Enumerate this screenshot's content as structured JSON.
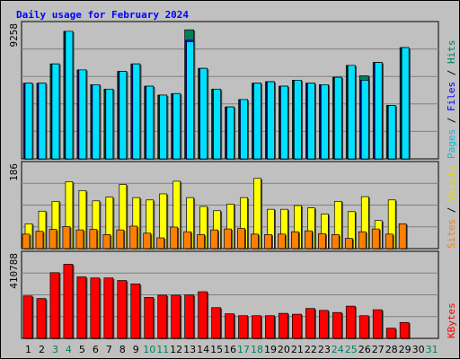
{
  "chart_data": {
    "type": "bar",
    "title": "Daily usage for February 2024",
    "x": [
      "1",
      "2",
      "3",
      "4",
      "5",
      "6",
      "7",
      "8",
      "9",
      "10",
      "11",
      "12",
      "13",
      "14",
      "15",
      "16",
      "17",
      "18",
      "19",
      "20",
      "21",
      "22",
      "23",
      "24",
      "25",
      "26",
      "27",
      "28",
      "29",
      "30",
      "31"
    ],
    "weekend_days": [
      "3",
      "4",
      "10",
      "11",
      "17",
      "18",
      "24",
      "25",
      "31"
    ],
    "panels": [
      {
        "name": "pages-files-hits",
        "max_label": "9258",
        "ylim": [
          0,
          9258
        ],
        "right_labels": [
          "Pages",
          "Files",
          "Hits"
        ],
        "series": [
          {
            "name": "Hits",
            "color": "#00805c",
            "values": [
              5100,
              5100,
              6400,
              8600,
              6000,
              5000,
              4700,
              5900,
              6400,
              4900,
              4300,
              4400,
              8700,
              6100,
              4700,
              3500,
              4000,
              5100,
              5200,
              4900,
              5300,
              5100,
              5000,
              5500,
              6300,
              5600,
              6500,
              3600,
              7500,
              0,
              0
            ]
          },
          {
            "name": "Files",
            "color": "#0000ff",
            "values": [
              5100,
              5100,
              6400,
              8600,
              6000,
              5000,
              4700,
              5900,
              6400,
              4900,
              4300,
              4400,
              8000,
              6100,
              4700,
              3500,
              4000,
              5100,
              5200,
              4900,
              5300,
              5100,
              5000,
              5500,
              6300,
              5300,
              6500,
              3600,
              7500,
              0,
              0
            ]
          },
          {
            "name": "Pages",
            "color": "#00e0ff",
            "values": [
              5100,
              5100,
              6400,
              8600,
              6000,
              5000,
              4700,
              5900,
              6400,
              4900,
              4300,
              4400,
              7900,
              6100,
              4700,
              3500,
              4000,
              5100,
              5200,
              4900,
              5300,
              5100,
              5000,
              5500,
              6300,
              5300,
              6500,
              3600,
              7500,
              0,
              0
            ]
          }
        ]
      },
      {
        "name": "visits-sites",
        "max_label": "186",
        "ylim": [
          0,
          186
        ],
        "right_labels": [
          "Sites",
          "Visits"
        ],
        "series": [
          {
            "name": "Visits",
            "color": "#ffff00",
            "values": [
              53,
              80,
              101,
              143,
              124,
              102,
              110,
              137,
              109,
              104,
              117,
              144,
              109,
              90,
              81,
              95,
              109,
              150,
              84,
              84,
              92,
              87,
              74,
              101,
              79,
              111,
              60,
              104,
              0,
              0,
              0
            ]
          },
          {
            "name": "Sites",
            "color": "#ff8000",
            "values": [
              31,
              37,
              41,
              47,
              40,
              41,
              30,
              40,
              48,
              33,
              23,
              46,
              36,
              30,
              40,
              42,
              43,
              31,
              30,
              31,
              36,
              38,
              32,
              30,
              22,
              36,
              42,
              31,
              53,
              0,
              0
            ]
          }
        ]
      },
      {
        "name": "kbytes",
        "max_label": "410788",
        "ylim": [
          0,
          410788
        ],
        "right_labels": [
          "KBytes"
        ],
        "series": [
          {
            "name": "KBytes",
            "color": "#ff0000",
            "values": [
              200000,
              188000,
              310000,
              350000,
              290000,
              285000,
              285000,
              273000,
              257000,
              193000,
              204000,
              204000,
              205000,
              220000,
              145000,
              116000,
              107000,
              107000,
              107000,
              118000,
              114000,
              141000,
              132000,
              122000,
              152000,
              107000,
              135000,
              48000,
              75000,
              0,
              0
            ]
          }
        ]
      }
    ]
  }
}
